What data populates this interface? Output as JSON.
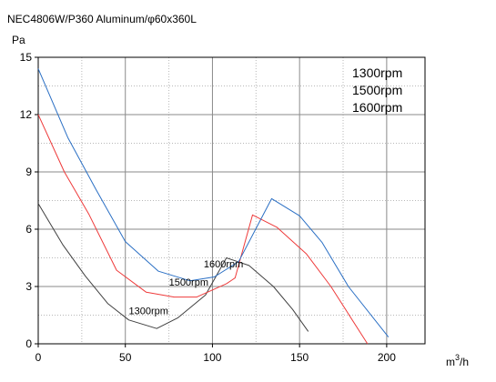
{
  "chart_data": {
    "type": "line",
    "title": "NEC4806W/P360 Aluminum/φ60x360L",
    "ylabel": "Pa",
    "xlabel": "m³/h",
    "xlabel_base": "m",
    "xlabel_sup": "3",
    "xlabel_tail": "/h",
    "xlim": [
      0,
      222
    ],
    "ylim": [
      0,
      15
    ],
    "xticks": [
      0,
      50,
      100,
      150,
      200
    ],
    "yticks": [
      0,
      3,
      6,
      9,
      12,
      15
    ],
    "grid": true,
    "legend_position": "top-right",
    "legend": [
      "1300rpm",
      "1500rpm",
      "1600rpm"
    ],
    "annotations": [
      {
        "text": "1600rpm",
        "x": 95,
        "y": 4.0
      },
      {
        "text": "1500rpm",
        "x": 75,
        "y": 3.05
      },
      {
        "text": "1300rpm",
        "x": 52,
        "y": 1.55
      }
    ],
    "series": [
      {
        "name": "1300rpm",
        "color": "#404040",
        "points": [
          [
            0,
            7.35
          ],
          [
            14,
            5.2
          ],
          [
            27,
            3.55
          ],
          [
            40,
            2.1
          ],
          [
            52,
            1.25
          ],
          [
            68,
            0.8
          ],
          [
            80,
            1.35
          ],
          [
            96,
            2.55
          ],
          [
            108,
            4.5
          ],
          [
            121,
            4.1
          ],
          [
            135,
            3.0
          ],
          [
            146,
            1.8
          ],
          [
            155,
            0.65
          ]
        ]
      },
      {
        "name": "1500rpm",
        "color": "#ee3a3a",
        "points": [
          [
            0,
            12.0
          ],
          [
            15,
            9.0
          ],
          [
            29,
            6.8
          ],
          [
            45,
            3.85
          ],
          [
            62,
            2.7
          ],
          [
            78,
            2.45
          ],
          [
            91,
            2.45
          ],
          [
            108,
            3.15
          ],
          [
            113,
            3.45
          ],
          [
            123,
            6.75
          ],
          [
            137,
            6.1
          ],
          [
            154,
            4.7
          ],
          [
            168,
            3.0
          ],
          [
            189,
            0.0
          ]
        ]
      },
      {
        "name": "1600rpm",
        "color": "#2a6fc4",
        "points": [
          [
            0,
            14.4
          ],
          [
            17,
            10.8
          ],
          [
            33,
            8.1
          ],
          [
            50,
            5.35
          ],
          [
            69,
            3.8
          ],
          [
            87,
            3.3
          ],
          [
            101,
            3.5
          ],
          [
            115,
            4.3
          ],
          [
            134,
            7.6
          ],
          [
            150,
            6.7
          ],
          [
            163,
            5.3
          ],
          [
            178,
            3.0
          ],
          [
            201,
            0.35
          ]
        ]
      }
    ]
  }
}
